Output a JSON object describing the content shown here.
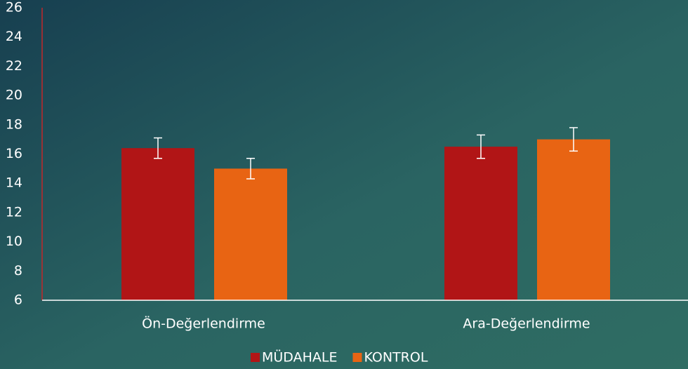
{
  "chart_data": {
    "type": "bar",
    "categories": [
      "Ön-Değerlendirme",
      "Ara-Değerlendirme"
    ],
    "series": [
      {
        "name": "MÜDAHALE",
        "color": "#b11516",
        "values": [
          16.4,
          16.5
        ],
        "errors": [
          0.7,
          0.8
        ]
      },
      {
        "name": "KONTROL",
        "color": "#e86413",
        "values": [
          15.0,
          17.0
        ],
        "errors": [
          0.7,
          0.8
        ]
      }
    ],
    "ylim": [
      6,
      26
    ],
    "yticks": [
      6,
      8,
      10,
      12,
      14,
      16,
      18,
      20,
      22,
      24,
      26
    ],
    "legend": "bottom"
  }
}
